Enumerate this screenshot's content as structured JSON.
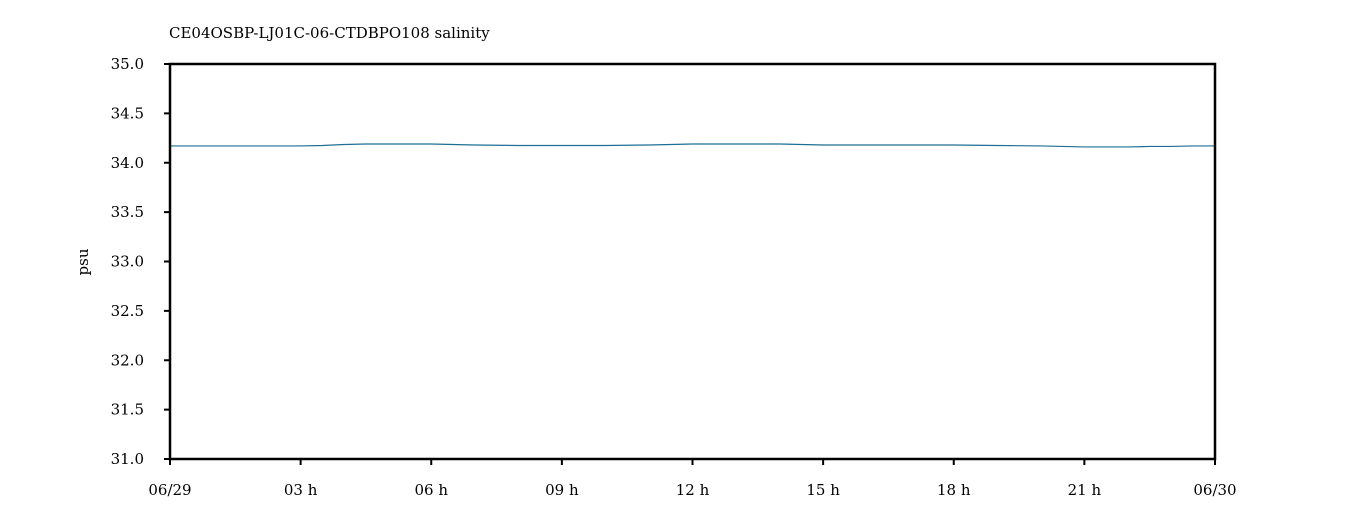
{
  "chart_data": {
    "type": "line",
    "title": "CE04OSBP-LJ01C-06-CTDBPO108 salinity",
    "xlabel": "",
    "ylabel": "psu",
    "ylim": [
      31.0,
      35.0
    ],
    "xlim_hours": [
      0,
      24
    ],
    "grid": false,
    "x_ticks": [
      {
        "hour": 0,
        "label": "06/29"
      },
      {
        "hour": 3,
        "label": "03 h"
      },
      {
        "hour": 6,
        "label": "06 h"
      },
      {
        "hour": 9,
        "label": "09 h"
      },
      {
        "hour": 12,
        "label": "12 h"
      },
      {
        "hour": 15,
        "label": "15 h"
      },
      {
        "hour": 18,
        "label": "18 h"
      },
      {
        "hour": 21,
        "label": "21 h"
      },
      {
        "hour": 24,
        "label": "06/30"
      }
    ],
    "y_ticks": [
      {
        "value": 31.0,
        "label": "31.0"
      },
      {
        "value": 31.5,
        "label": "31.5"
      },
      {
        "value": 32.0,
        "label": "32.0"
      },
      {
        "value": 32.5,
        "label": "32.5"
      },
      {
        "value": 33.0,
        "label": "33.0"
      },
      {
        "value": 33.5,
        "label": "33.5"
      },
      {
        "value": 34.0,
        "label": "34.0"
      },
      {
        "value": 34.5,
        "label": "34.5"
      },
      {
        "value": 35.0,
        "label": "35.0"
      }
    ],
    "series": [
      {
        "color": "#1f6e94",
        "x_hours": [
          0,
          1,
          2,
          3,
          3.5,
          4,
          4.5,
          5,
          5.5,
          6,
          6.5,
          7,
          8,
          9,
          10,
          11,
          11.5,
          12,
          12.5,
          13,
          13.5,
          14,
          14.5,
          15,
          16,
          17,
          18,
          19,
          20,
          20.5,
          21,
          21.5,
          22,
          22.5,
          23,
          23.5,
          24
        ],
        "values": [
          34.17,
          34.17,
          34.17,
          34.17,
          34.175,
          34.185,
          34.19,
          34.19,
          34.19,
          34.19,
          34.185,
          34.18,
          34.175,
          34.175,
          34.175,
          34.18,
          34.185,
          34.19,
          34.19,
          34.19,
          34.19,
          34.19,
          34.185,
          34.18,
          34.18,
          34.18,
          34.18,
          34.175,
          34.17,
          34.165,
          34.16,
          34.16,
          34.16,
          34.165,
          34.165,
          34.17,
          34.17
        ]
      }
    ]
  }
}
